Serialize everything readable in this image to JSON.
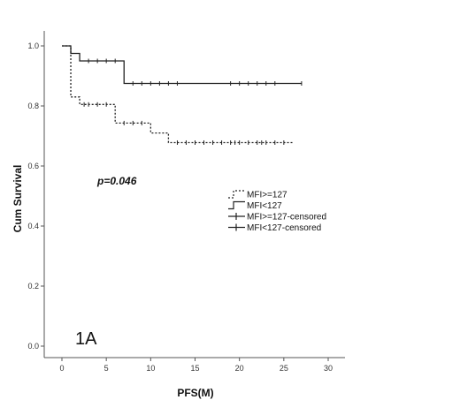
{
  "chart_data": {
    "type": "line",
    "subtype": "kaplan-meier step",
    "title": "",
    "xlabel": "PFS(M)",
    "ylabel": "Cum Survival",
    "xlim": [
      0,
      30
    ],
    "ylim": [
      0,
      1
    ],
    "x_ticks": [
      0,
      5,
      10,
      15,
      20,
      25,
      30
    ],
    "y_ticks": [
      0.0,
      0.2,
      0.4,
      0.6,
      0.8,
      1.0
    ],
    "x_tick_labels": [
      "0",
      "5",
      "10",
      "15",
      "20",
      "25",
      "30"
    ],
    "y_tick_labels": [
      "0.0",
      "0.2",
      "0.4",
      "0.6",
      "0.8",
      "1.0"
    ],
    "grid": false,
    "annotation": "p=0.046",
    "panel_label": "1A",
    "legend_position": "right-middle",
    "legend": [
      "MFI>=127",
      "MFI<127",
      "MFI>=127-censored",
      "MFI<127-censored"
    ],
    "series": [
      {
        "name": "MFI>=127",
        "style": "dotted",
        "steps": [
          [
            0,
            1.0
          ],
          [
            1,
            0.83
          ],
          [
            2,
            0.805
          ],
          [
            6,
            0.743
          ],
          [
            10,
            0.71
          ],
          [
            12,
            0.678
          ],
          [
            26,
            0.678
          ]
        ],
        "censored": [
          2.5,
          3,
          4,
          5,
          7,
          8,
          9,
          13,
          14,
          15,
          16,
          17,
          18,
          19,
          19.5,
          20,
          21,
          22,
          22.5,
          23,
          24,
          25
        ]
      },
      {
        "name": "MFI<127",
        "style": "solid",
        "steps": [
          [
            0,
            1.0
          ],
          [
            1,
            0.975
          ],
          [
            2,
            0.95
          ],
          [
            7,
            0.875
          ],
          [
            27,
            0.875
          ]
        ],
        "censored": [
          3,
          4,
          5,
          6,
          8,
          9,
          10,
          11,
          12,
          13,
          19,
          20,
          21,
          22,
          23,
          24,
          27
        ]
      }
    ]
  }
}
